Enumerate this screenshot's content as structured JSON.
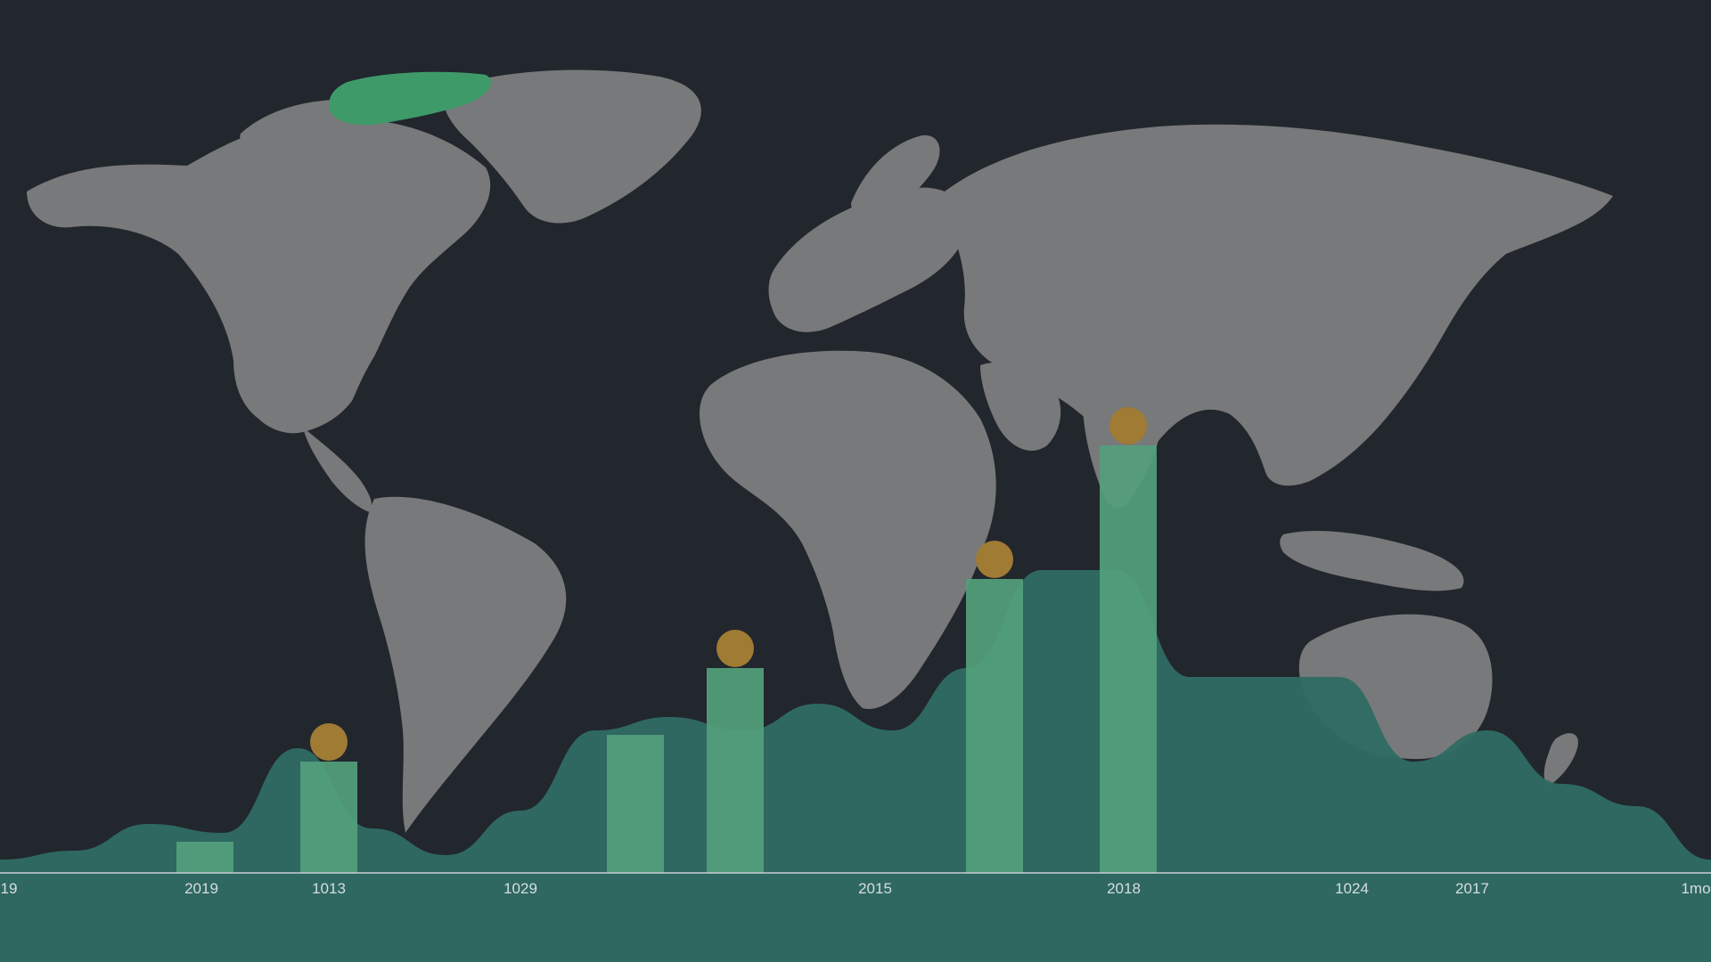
{
  "colors": {
    "background": "#22262d",
    "land": "#77797a",
    "greenland_highlight": "#3f9a6a",
    "area_fill": "#2f6b63",
    "bar_fill": "#54a07c",
    "marker": "#a07b34",
    "axis_line": "#c9ced2",
    "tick_text": "#d7dde0"
  },
  "chart_data": {
    "type": "bar",
    "title": "",
    "xlabel": "",
    "ylabel": "",
    "grid": false,
    "ylim": [
      0,
      100
    ],
    "x_tick_labels": [
      "19",
      "2019",
      "1013",
      "1029",
      "2015",
      "2018",
      "1024",
      "2017",
      "1mo"
    ],
    "bars": [
      {
        "value": 7,
        "marker": false
      },
      {
        "value": 25,
        "marker": true
      },
      {
        "value": 31,
        "marker": false
      },
      {
        "value": 46,
        "marker": true
      },
      {
        "value": 66,
        "marker": true
      },
      {
        "value": 96,
        "marker": true
      }
    ],
    "area_profile": [
      3,
      5,
      11,
      9,
      28,
      10,
      4,
      14,
      32,
      35,
      32,
      38,
      32,
      46,
      68,
      68,
      44,
      44,
      44,
      25,
      32,
      20,
      15,
      3
    ]
  }
}
